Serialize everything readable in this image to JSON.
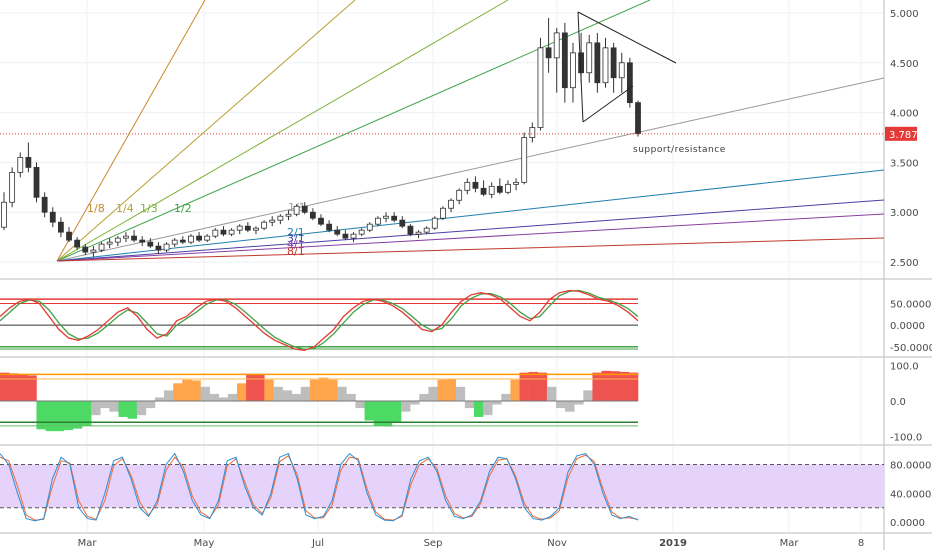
{
  "chart_data": {
    "type": "candlestick",
    "symbol_last_price": "3.787",
    "price_axis": {
      "ticks": [
        "5.000",
        "4.500",
        "4.000",
        "3.500",
        "3.000",
        "2.500"
      ],
      "values": [
        5.0,
        4.5,
        4.0,
        3.5,
        3.0,
        2.5
      ],
      "ylim": [
        2.4,
        5.07
      ],
      "last_price": 3.787
    },
    "time_axis": {
      "labels": [
        "Mar",
        "May",
        "Jul",
        "Sep",
        "Nov",
        "2019",
        "Mar",
        "8"
      ]
    },
    "candles": [
      [
        2.85,
        3.2,
        2.82,
        3.1
      ],
      [
        3.1,
        3.45,
        3.05,
        3.4
      ],
      [
        3.4,
        3.6,
        3.35,
        3.55
      ],
      [
        3.55,
        3.7,
        3.4,
        3.45
      ],
      [
        3.45,
        3.5,
        3.1,
        3.15
      ],
      [
        3.15,
        3.2,
        2.95,
        3.0
      ],
      [
        3.0,
        3.05,
        2.85,
        2.9
      ],
      [
        2.9,
        2.95,
        2.75,
        2.8
      ],
      [
        2.8,
        2.85,
        2.7,
        2.72
      ],
      [
        2.72,
        2.75,
        2.62,
        2.65
      ],
      [
        2.65,
        2.68,
        2.57,
        2.6
      ],
      [
        2.6,
        2.66,
        2.55,
        2.62
      ],
      [
        2.62,
        2.7,
        2.6,
        2.68
      ],
      [
        2.68,
        2.74,
        2.64,
        2.7
      ],
      [
        2.7,
        2.76,
        2.66,
        2.74
      ],
      [
        2.74,
        2.8,
        2.7,
        2.76
      ],
      [
        2.76,
        2.82,
        2.7,
        2.72
      ],
      [
        2.72,
        2.76,
        2.66,
        2.7
      ],
      [
        2.7,
        2.74,
        2.64,
        2.66
      ],
      [
        2.66,
        2.7,
        2.58,
        2.62
      ],
      [
        2.62,
        2.7,
        2.6,
        2.68
      ],
      [
        2.68,
        2.74,
        2.65,
        2.72
      ],
      [
        2.72,
        2.76,
        2.68,
        2.7
      ],
      [
        2.7,
        2.78,
        2.68,
        2.76
      ],
      [
        2.76,
        2.8,
        2.7,
        2.72
      ],
      [
        2.72,
        2.78,
        2.7,
        2.76
      ],
      [
        2.76,
        2.84,
        2.74,
        2.82
      ],
      [
        2.82,
        2.86,
        2.76,
        2.78
      ],
      [
        2.78,
        2.84,
        2.76,
        2.82
      ],
      [
        2.82,
        2.88,
        2.78,
        2.86
      ],
      [
        2.86,
        2.9,
        2.8,
        2.82
      ],
      [
        2.82,
        2.86,
        2.78,
        2.84
      ],
      [
        2.84,
        2.92,
        2.82,
        2.9
      ],
      [
        2.9,
        2.96,
        2.86,
        2.92
      ],
      [
        2.92,
        2.98,
        2.88,
        2.96
      ],
      [
        2.96,
        3.02,
        2.92,
        2.98
      ],
      [
        2.98,
        3.08,
        2.96,
        3.06
      ],
      [
        3.06,
        3.1,
        2.98,
        3.0
      ],
      [
        3.0,
        3.04,
        2.92,
        2.94
      ],
      [
        2.94,
        2.98,
        2.86,
        2.88
      ],
      [
        2.88,
        2.92,
        2.8,
        2.82
      ],
      [
        2.82,
        2.86,
        2.76,
        2.78
      ],
      [
        2.78,
        2.82,
        2.72,
        2.74
      ],
      [
        2.74,
        2.8,
        2.7,
        2.78
      ],
      [
        2.78,
        2.84,
        2.76,
        2.82
      ],
      [
        2.82,
        2.9,
        2.8,
        2.88
      ],
      [
        2.88,
        2.96,
        2.86,
        2.94
      ],
      [
        2.94,
        3.0,
        2.9,
        2.96
      ],
      [
        2.96,
        3.0,
        2.9,
        2.92
      ],
      [
        2.92,
        2.96,
        2.84,
        2.86
      ],
      [
        2.86,
        2.88,
        2.76,
        2.78
      ],
      [
        2.78,
        2.82,
        2.74,
        2.8
      ],
      [
        2.8,
        2.86,
        2.78,
        2.84
      ],
      [
        2.84,
        2.96,
        2.82,
        2.94
      ],
      [
        2.94,
        3.06,
        2.92,
        3.04
      ],
      [
        3.04,
        3.14,
        3.0,
        3.12
      ],
      [
        3.12,
        3.24,
        3.08,
        3.22
      ],
      [
        3.22,
        3.34,
        3.18,
        3.3
      ],
      [
        3.3,
        3.36,
        3.2,
        3.24
      ],
      [
        3.24,
        3.32,
        3.16,
        3.18
      ],
      [
        3.18,
        3.3,
        3.14,
        3.26
      ],
      [
        3.26,
        3.34,
        3.18,
        3.2
      ],
      [
        3.2,
        3.32,
        3.18,
        3.28
      ],
      [
        3.28,
        3.34,
        3.22,
        3.3
      ],
      [
        3.3,
        3.8,
        3.28,
        3.75
      ],
      [
        3.75,
        3.9,
        3.7,
        3.85
      ],
      [
        3.85,
        4.75,
        3.82,
        4.65
      ],
      [
        4.65,
        4.95,
        4.4,
        4.55
      ],
      [
        4.55,
        4.85,
        4.2,
        4.8
      ],
      [
        4.8,
        4.9,
        4.1,
        4.25
      ],
      [
        4.25,
        4.7,
        4.1,
        4.6
      ],
      [
        4.6,
        4.8,
        4.3,
        4.4
      ],
      [
        4.4,
        4.78,
        4.3,
        4.7
      ],
      [
        4.7,
        4.8,
        4.2,
        4.3
      ],
      [
        4.3,
        4.75,
        4.25,
        4.65
      ],
      [
        4.65,
        4.7,
        4.2,
        4.35
      ],
      [
        4.35,
        4.6,
        4.2,
        4.5
      ],
      [
        4.5,
        4.55,
        4.05,
        4.1
      ],
      [
        4.1,
        4.12,
        3.76,
        3.79
      ]
    ],
    "fan_lines": [
      {
        "label": "1/8",
        "color": "#c8882a"
      },
      {
        "label": "1/4",
        "color": "#b5a233"
      },
      {
        "label": "1/3",
        "color": "#7fb23a"
      },
      {
        "label": "1/2",
        "color": "#3fa34a"
      },
      {
        "label": "1/1",
        "color": "#9a9a9a"
      },
      {
        "label": "2/1",
        "color": "#1f7fb0"
      },
      {
        "label": "3/1",
        "color": "#4a3fa3"
      },
      {
        "label": "4/1",
        "color": "#8a3fa3"
      },
      {
        "label": "8/1",
        "color": "#c0392b"
      }
    ],
    "annotation": "support/resistance",
    "panels": [
      {
        "name": "oscillator",
        "ticks": [
          "50.0000",
          "0.0000",
          "-50.0000"
        ],
        "values": [
          50,
          0,
          -50
        ],
        "ylim": [
          -62,
          95
        ],
        "bands": [
          60,
          50,
          -50,
          -55
        ],
        "line_a": [
          20,
          40,
          55,
          60,
          50,
          20,
          -10,
          -30,
          -35,
          -25,
          -10,
          10,
          30,
          40,
          20,
          -10,
          -30,
          -20,
          10,
          20,
          40,
          55,
          60,
          55,
          40,
          20,
          0,
          -20,
          -35,
          -45,
          -55,
          -58,
          -50,
          -30,
          -10,
          20,
          40,
          55,
          60,
          55,
          45,
          30,
          10,
          -10,
          -15,
          0,
          30,
          55,
          70,
          75,
          70,
          60,
          40,
          20,
          10,
          30,
          60,
          75,
          80,
          78,
          70,
          60,
          55,
          45,
          30,
          10
        ],
        "line_b": [
          10,
          30,
          50,
          58,
          55,
          35,
          5,
          -20,
          -32,
          -30,
          -18,
          0,
          20,
          35,
          28,
          5,
          -20,
          -25,
          0,
          15,
          30,
          48,
          58,
          58,
          48,
          30,
          10,
          -10,
          -28,
          -40,
          -50,
          -56,
          -54,
          -40,
          -20,
          5,
          30,
          48,
          58,
          58,
          50,
          38,
          20,
          0,
          -12,
          -8,
          15,
          45,
          62,
          72,
          73,
          65,
          50,
          30,
          15,
          20,
          45,
          68,
          78,
          80,
          74,
          64,
          58,
          50,
          38,
          20
        ]
      },
      {
        "name": "histogram",
        "ticks": [
          "100.0",
          "0.0",
          "-100.0"
        ],
        "values": [
          100,
          0,
          -100
        ],
        "ylim": [
          -110,
          110
        ],
        "bars": [
          80,
          78,
          76,
          72,
          -80,
          -85,
          -85,
          -82,
          -78,
          -70,
          -40,
          -20,
          -30,
          -45,
          -50,
          -40,
          -20,
          10,
          30,
          50,
          60,
          58,
          40,
          20,
          10,
          20,
          50,
          75,
          76,
          60,
          40,
          30,
          20,
          40,
          60,
          66,
          60,
          40,
          20,
          -20,
          -55,
          -70,
          -72,
          -60,
          -30,
          -10,
          20,
          40,
          60,
          62,
          40,
          -20,
          -45,
          -40,
          -10,
          20,
          60,
          80,
          82,
          80,
          40,
          -20,
          -30,
          -10,
          30,
          80,
          85,
          84,
          82,
          80
        ],
        "bands": [
          75,
          62,
          -60,
          -70
        ]
      },
      {
        "name": "stochastic",
        "ticks": [
          "80.0000",
          "40.0000",
          "0.0000"
        ],
        "values": [
          80,
          40,
          0
        ],
        "ylim": [
          -8,
          100
        ],
        "band": [
          20,
          80
        ],
        "line_a": [
          95,
          80,
          40,
          5,
          2,
          5,
          60,
          90,
          80,
          20,
          5,
          3,
          40,
          85,
          90,
          60,
          20,
          8,
          30,
          80,
          95,
          70,
          30,
          10,
          5,
          30,
          85,
          90,
          50,
          20,
          10,
          40,
          90,
          95,
          60,
          10,
          5,
          8,
          30,
          80,
          95,
          85,
          40,
          10,
          3,
          2,
          10,
          60,
          85,
          90,
          70,
          30,
          8,
          5,
          10,
          30,
          70,
          90,
          88,
          60,
          20,
          5,
          3,
          8,
          20,
          70,
          92,
          95,
          80,
          40,
          10,
          5,
          8,
          3
        ],
        "line_b": [
          90,
          85,
          50,
          10,
          3,
          4,
          50,
          85,
          82,
          30,
          8,
          4,
          30,
          78,
          88,
          65,
          28,
          10,
          25,
          72,
          90,
          76,
          36,
          14,
          6,
          24,
          78,
          88,
          56,
          24,
          12,
          34,
          84,
          92,
          66,
          16,
          6,
          6,
          24,
          72,
          90,
          88,
          46,
          14,
          4,
          3,
          8,
          52,
          80,
          88,
          74,
          36,
          12,
          6,
          8,
          26,
          64,
          86,
          88,
          64,
          26,
          8,
          4,
          6,
          16,
          62,
          88,
          93,
          84,
          46,
          14,
          6,
          6,
          4
        ]
      }
    ]
  }
}
